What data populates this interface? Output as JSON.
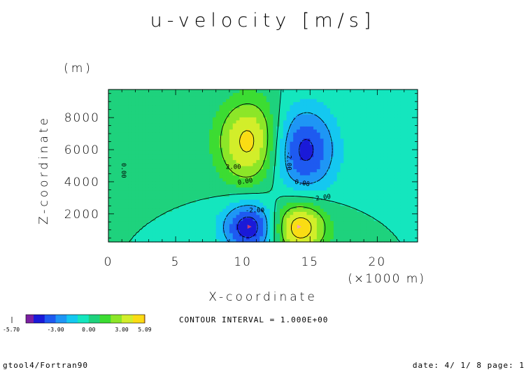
{
  "chart_data": {
    "type": "heatmap",
    "title": "u-velocity [m/s]",
    "xlabel": "X-coordinate",
    "x_unit": "(×1000 m)",
    "ylabel": "Z-coordinate",
    "y_unit": "(m)",
    "xlim": [
      0,
      23
    ],
    "ylim": [
      250,
      9750
    ],
    "x_ticks": [
      0,
      5,
      10,
      15,
      20
    ],
    "y_ticks": [
      2000,
      4000,
      6000,
      8000
    ],
    "contour_interval_text": "CONTOUR INTERVAL = 1.000E+00",
    "contour_labels": [
      "0.00",
      "2.00",
      "-2.00",
      "0.00",
      "0.00",
      "-2.00",
      "2.00"
    ],
    "extrema": [
      {
        "x": 10.5,
        "z": 6500,
        "value": 4.5
      },
      {
        "x": 14.5,
        "z": 6000,
        "value": -4.5
      },
      {
        "x": 10.5,
        "z": 1200,
        "value": -5.0
      },
      {
        "x": 14.2,
        "z": 1200,
        "value": 5.09
      }
    ],
    "colorbar": {
      "ticks": [
        "-3.00",
        "0.00",
        "3.00",
        "5.09"
      ],
      "min_label": "-5.70",
      "colors": [
        "#7b1fa2",
        "#1a1ad8",
        "#1e5af0",
        "#1e96f5",
        "#14c8f0",
        "#14e6be",
        "#1ed27d",
        "#3cdc32",
        "#8ce628",
        "#d2ee2a",
        "#fadc14",
        "#fba50f",
        "#fa5a14",
        "#f02828",
        "#f08c96"
      ],
      "levels": [
        -5.7,
        -5,
        -4,
        -3,
        -2,
        -1,
        0,
        1,
        2,
        3,
        4,
        5,
        5.09
      ]
    }
  },
  "footer": {
    "left": "gtool4/Fortran90",
    "right": "date: 4/ 1/ 8 page: 1"
  }
}
